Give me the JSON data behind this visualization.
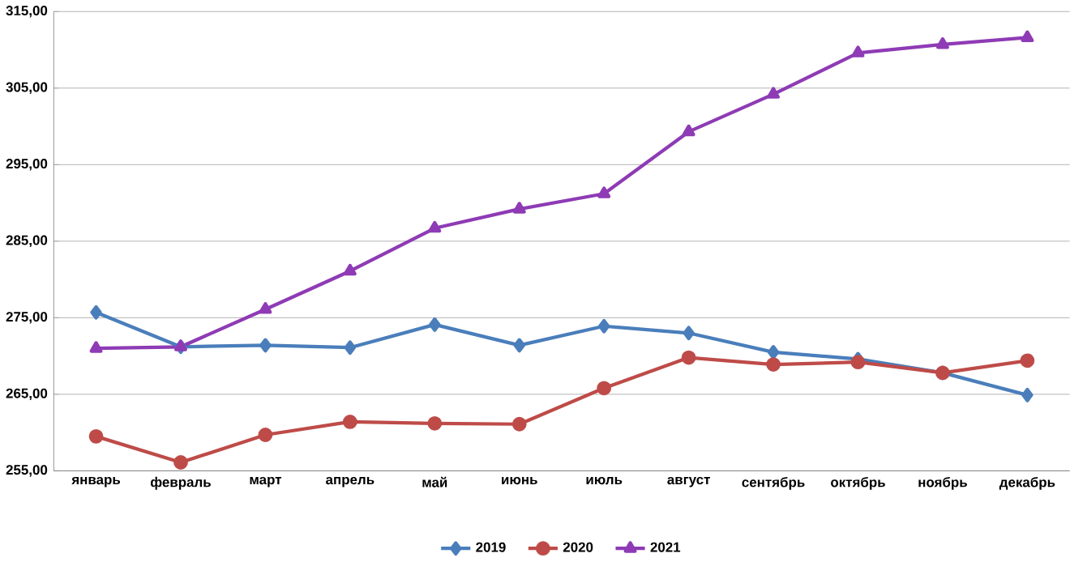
{
  "chart_data": {
    "type": "line",
    "categories": [
      "январь",
      "февраль",
      "март",
      "апрель",
      "май",
      "июнь",
      "июль",
      "август",
      "сентябрь",
      "октябрь",
      "ноябрь",
      "декабрь"
    ],
    "series": [
      {
        "name": "2019",
        "color": "#4a7ebb",
        "marker": "diamond",
        "values": [
          275.7,
          271.2,
          271.4,
          271.1,
          274.1,
          271.4,
          273.9,
          273.0,
          270.5,
          269.6,
          267.8,
          264.9
        ]
      },
      {
        "name": "2020",
        "color": "#be4b48",
        "marker": "circle",
        "values": [
          259.5,
          256.1,
          259.7,
          261.4,
          261.2,
          261.1,
          265.8,
          269.8,
          268.9,
          269.2,
          267.8,
          269.4
        ]
      },
      {
        "name": "2021",
        "color": "#8e3bb5",
        "marker": "triangle",
        "values": [
          271.0,
          271.2,
          276.1,
          281.1,
          286.7,
          289.2,
          291.2,
          299.3,
          304.2,
          309.6,
          310.7,
          311.6
        ]
      }
    ],
    "ylim": [
      255,
      315
    ],
    "yticks": [
      {
        "value": 255,
        "label": "255,00"
      },
      {
        "value": 265,
        "label": "265,00"
      },
      {
        "value": 275,
        "label": "275,00"
      },
      {
        "value": 285,
        "label": "285,00"
      },
      {
        "value": 295,
        "label": "295,00"
      },
      {
        "value": 305,
        "label": "305,00"
      },
      {
        "value": 315,
        "label": "315,00"
      }
    ],
    "grid": "y",
    "legend": "bottom",
    "line_style": "solid"
  }
}
